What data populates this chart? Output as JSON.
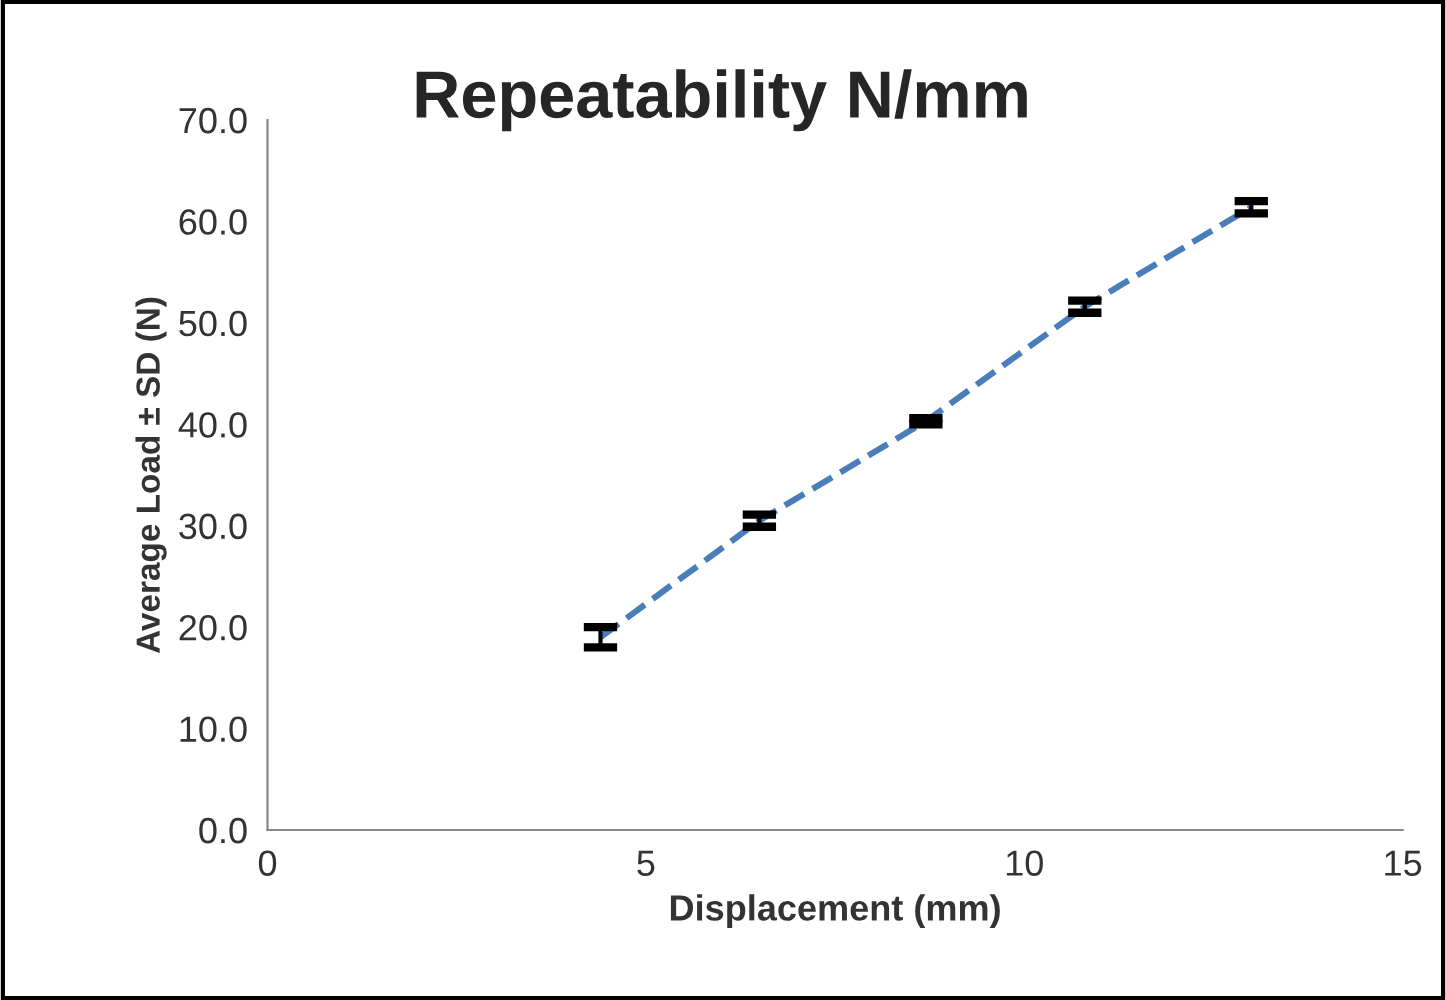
{
  "chart_data": {
    "type": "line",
    "title": "Repeatability N/mm",
    "xlabel": "Displacement (mm)",
    "ylabel": "Average Load ± SD (N)",
    "x": [
      4.4,
      6.5,
      8.7,
      10.8,
      13.0
    ],
    "series": [
      {
        "color": "#4a7ebb",
        "values": [
          19.0,
          30.5,
          40.3,
          51.6,
          61.4
        ],
        "errors": [
          1.0,
          0.6,
          0.3,
          0.6,
          0.6
        ]
      }
    ],
    "line_style": "dashed",
    "marker": "none",
    "grid": false,
    "legend": false,
    "xlim": [
      0,
      15
    ],
    "xticks": [
      0,
      5,
      10,
      15
    ],
    "ylim": [
      0,
      70
    ],
    "yticks": [
      {
        "value": 0,
        "label": "0.0"
      },
      {
        "value": 10,
        "label": "10.0"
      },
      {
        "value": 20,
        "label": "20.0"
      },
      {
        "value": 30,
        "label": "30.0"
      },
      {
        "value": 40,
        "label": "40.0"
      },
      {
        "value": 50,
        "label": "50.0"
      },
      {
        "value": 60,
        "label": "60.0"
      },
      {
        "value": 70,
        "label": "70.0"
      }
    ]
  }
}
